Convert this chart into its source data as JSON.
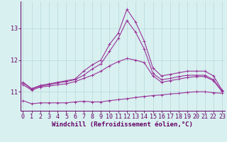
{
  "x": [
    0,
    1,
    2,
    3,
    4,
    5,
    6,
    7,
    8,
    9,
    10,
    11,
    12,
    13,
    14,
    15,
    16,
    17,
    18,
    19,
    20,
    21,
    22,
    23
  ],
  "line1": [
    11.3,
    11.1,
    11.2,
    11.25,
    11.3,
    11.35,
    11.4,
    11.65,
    11.85,
    12.0,
    12.5,
    12.85,
    13.6,
    13.2,
    12.6,
    11.75,
    11.5,
    11.55,
    11.6,
    11.65,
    11.65,
    11.65,
    11.5,
    11.05
  ],
  "line2": [
    11.28,
    11.08,
    11.18,
    11.22,
    11.28,
    11.32,
    11.38,
    11.52,
    11.72,
    11.88,
    12.28,
    12.68,
    13.25,
    12.88,
    12.35,
    11.58,
    11.38,
    11.42,
    11.48,
    11.52,
    11.52,
    11.52,
    11.38,
    11.02
  ],
  "line3": [
    11.22,
    11.05,
    11.15,
    11.18,
    11.22,
    11.25,
    11.32,
    11.42,
    11.52,
    11.65,
    11.82,
    11.95,
    12.05,
    12.0,
    11.92,
    11.5,
    11.3,
    11.35,
    11.4,
    11.45,
    11.48,
    11.48,
    11.35,
    11.0
  ],
  "line4": [
    10.72,
    10.62,
    10.65,
    10.65,
    10.65,
    10.65,
    10.68,
    10.7,
    10.68,
    10.68,
    10.72,
    10.75,
    10.78,
    10.82,
    10.85,
    10.88,
    10.9,
    10.93,
    10.95,
    10.98,
    11.0,
    11.0,
    10.97,
    10.95
  ],
  "line_color": "#993399",
  "bg_color": "#d8f0f0",
  "grid_color": "#b8d8d8",
  "xlabel": "Windchill (Refroidissement éolien,°C)",
  "ylim": [
    10.4,
    13.85
  ],
  "yticks": [
    11,
    12,
    13
  ],
  "xticks": [
    0,
    1,
    2,
    3,
    4,
    5,
    6,
    7,
    8,
    9,
    10,
    11,
    12,
    13,
    14,
    15,
    16,
    17,
    18,
    19,
    20,
    21,
    22,
    23
  ],
  "marker": "+",
  "markersize": 3,
  "linewidth": 0.8,
  "xlabel_fontsize": 6.5,
  "tick_fontsize": 6,
  "axis_color": "#660066"
}
